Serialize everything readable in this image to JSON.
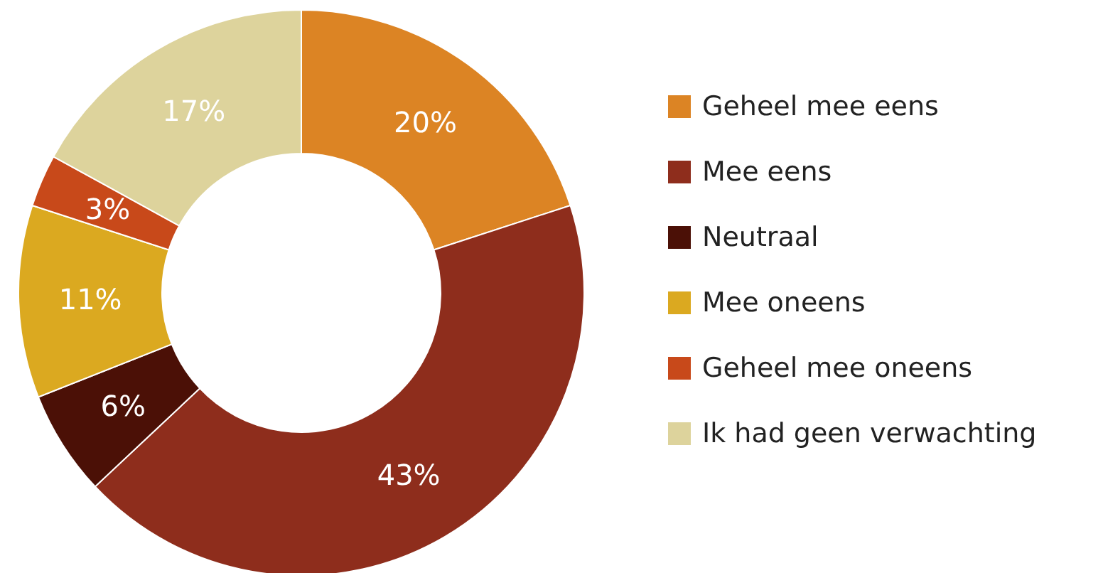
{
  "chart_data": {
    "type": "donut",
    "categories": [
      "Geheel mee eens",
      "Mee eens",
      "Neutraal",
      "Mee oneens",
      "Geheel mee oneens",
      "Ik had geen verwachting"
    ],
    "values": [
      20,
      43,
      6,
      11,
      3,
      17
    ],
    "value_labels": [
      "20%",
      "43%",
      "6%",
      "11%",
      "3%",
      "17%"
    ],
    "colors": [
      "#dc8424",
      "#8e2d1c",
      "#4b1006",
      "#dba920",
      "#c8491a",
      "#ddd39c"
    ],
    "legend": "right"
  }
}
